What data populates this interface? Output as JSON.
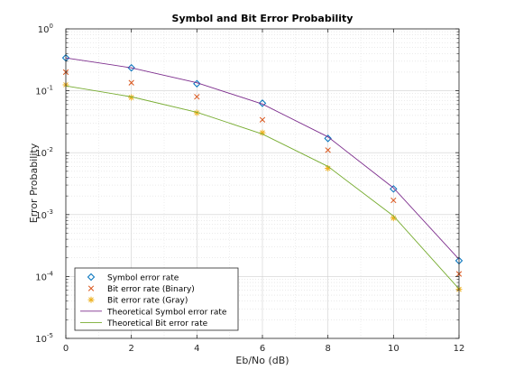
{
  "chart_data": {
    "type": "line",
    "title": "Symbol and Bit Error Probability",
    "xlabel": "Eb/No (dB)",
    "ylabel": "Error Probability",
    "xlim": [
      0,
      12
    ],
    "ylim": [
      1e-05,
      1
    ],
    "yscale": "log",
    "grid": "major-and-minor",
    "legend_position": "bottom-left",
    "x_ticks": [
      "0",
      "2",
      "4",
      "6",
      "8",
      "10",
      "12"
    ],
    "y_ticks": [
      {
        "base": "10",
        "exp": "0",
        "value": 1
      },
      {
        "base": "10",
        "exp": "-1",
        "value": 0.1
      },
      {
        "base": "10",
        "exp": "-2",
        "value": 0.01
      },
      {
        "base": "10",
        "exp": "-3",
        "value": 0.001
      },
      {
        "base": "10",
        "exp": "-4",
        "value": 0.0001
      },
      {
        "base": "10",
        "exp": "-5",
        "value": 1e-05
      }
    ],
    "x": [
      0,
      2,
      4,
      6,
      8,
      10,
      12
    ],
    "series": [
      {
        "name": "Symbol error rate",
        "kind": "marker",
        "marker": "diamond",
        "color": "#0072BD",
        "values": [
          0.34,
          0.235,
          0.13,
          0.063,
          0.017,
          0.0026,
          0.00018
        ]
      },
      {
        "name": "Bit error rate (Binary)",
        "kind": "marker",
        "marker": "x",
        "color": "#D95319",
        "values": [
          0.2,
          0.135,
          0.08,
          0.034,
          0.011,
          0.0017,
          0.00011
        ]
      },
      {
        "name": "Bit error rate (Gray)",
        "kind": "marker",
        "marker": "star",
        "color": "#EDB120",
        "values": [
          0.125,
          0.078,
          0.044,
          0.021,
          0.0056,
          0.00088,
          6.2e-05
        ]
      },
      {
        "name": "Theoretical Symbol error rate",
        "kind": "line",
        "color": "#7E2F8E",
        "values": [
          0.34,
          0.235,
          0.135,
          0.061,
          0.018,
          0.0027,
          0.00019
        ]
      },
      {
        "name": "Theoretical Bit error rate",
        "kind": "line",
        "color": "#77AC30",
        "values": [
          0.12,
          0.08,
          0.045,
          0.02,
          0.006,
          0.00095,
          6.3e-05
        ]
      }
    ]
  }
}
